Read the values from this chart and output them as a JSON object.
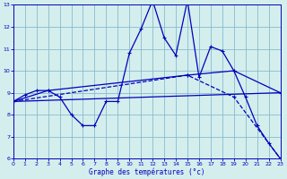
{
  "xlabel": "Graphe des températures (°c)",
  "xlim": [
    0,
    23
  ],
  "ylim": [
    6,
    13
  ],
  "yticks": [
    6,
    7,
    8,
    9,
    10,
    11,
    12,
    13
  ],
  "xticks": [
    0,
    1,
    2,
    3,
    4,
    5,
    6,
    7,
    8,
    9,
    10,
    11,
    12,
    13,
    14,
    15,
    16,
    17,
    18,
    19,
    20,
    21,
    22,
    23
  ],
  "bg_color": "#d4eeee",
  "line_color": "#0000bb",
  "grid_color": "#88bbcc",
  "line1_x": [
    0,
    1,
    2,
    3,
    4,
    5,
    6,
    7,
    8,
    9,
    10,
    11,
    12,
    13,
    14,
    15,
    16,
    17,
    18,
    19,
    20,
    21,
    22,
    23
  ],
  "line1_y": [
    8.6,
    8.9,
    9.1,
    9.1,
    8.8,
    8.0,
    7.5,
    7.5,
    8.6,
    8.6,
    10.8,
    11.9,
    13.2,
    11.5,
    10.7,
    13.2,
    9.7,
    11.1,
    10.9,
    10.0,
    8.8,
    7.5,
    6.7,
    6.0
  ],
  "line2_x": [
    0,
    3,
    15,
    19,
    23
  ],
  "line2_y": [
    8.6,
    9.1,
    9.8,
    10.0,
    9.0
  ],
  "line3_x": [
    0,
    23
  ],
  "line3_y": [
    8.6,
    9.0
  ],
  "line4_x": [
    0,
    15,
    19,
    23
  ],
  "line4_y": [
    8.6,
    9.8,
    8.8,
    6.0
  ]
}
